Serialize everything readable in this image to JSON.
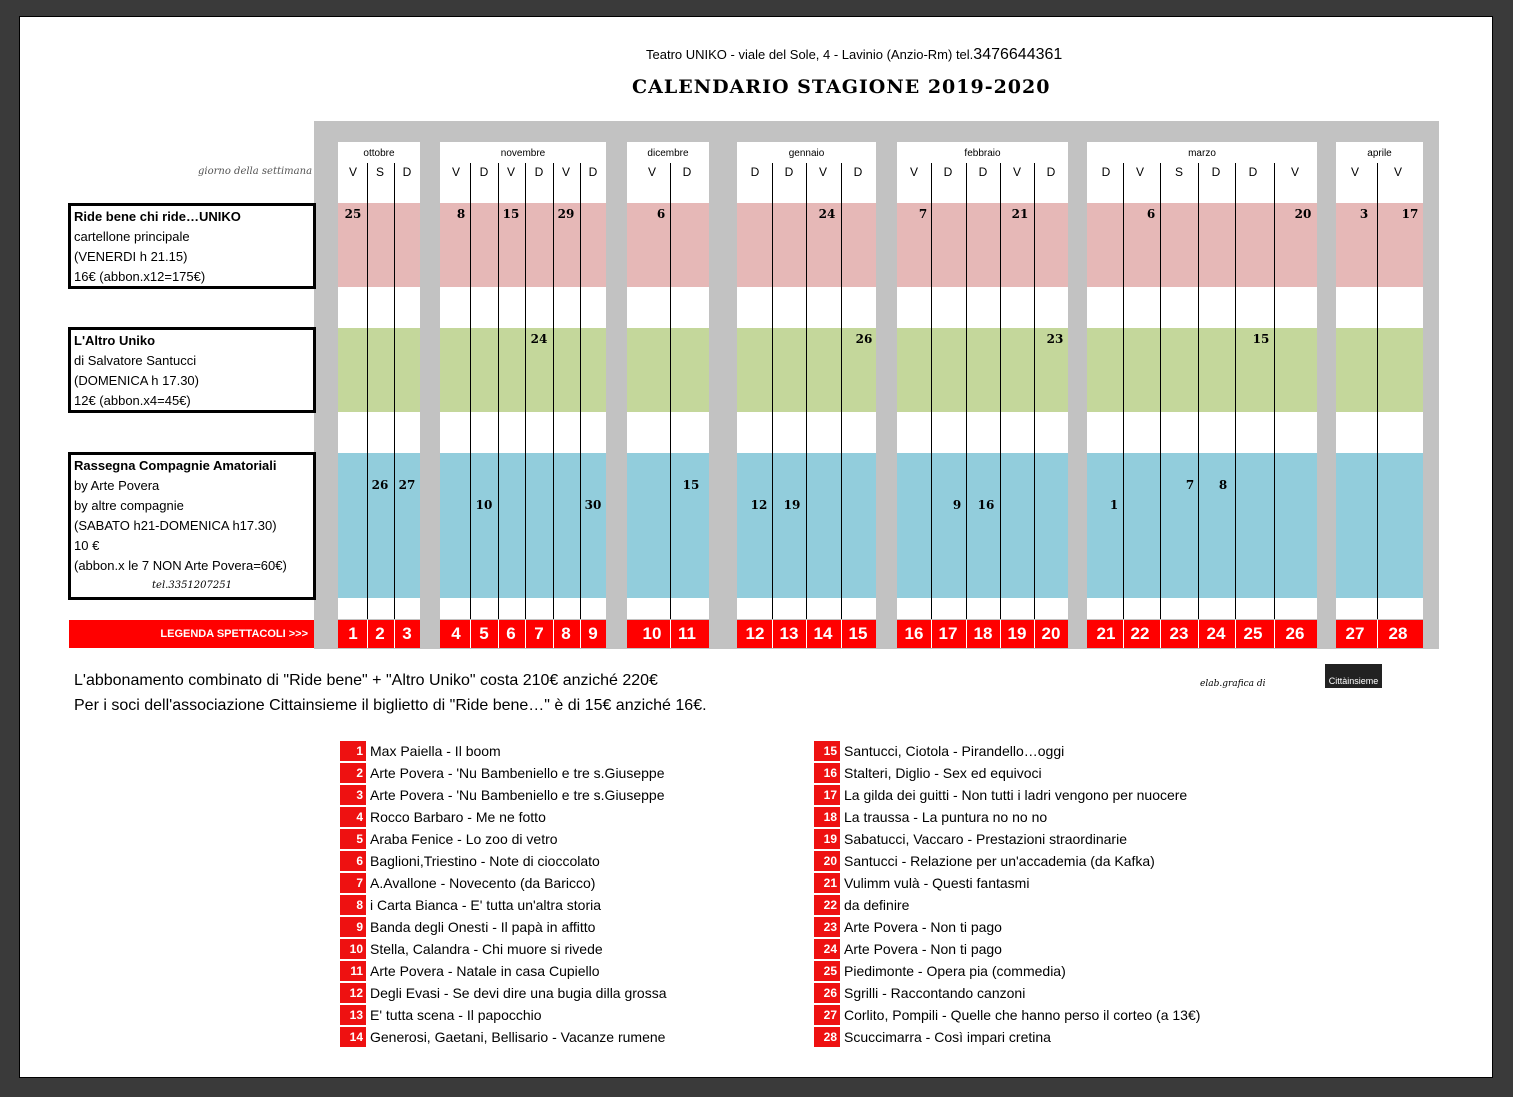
{
  "header": {
    "info": "Teatro UNIKO  -  viale del Sole, 4  - Lavinio (Anzio-Rm)   tel.",
    "tel": "3476644361",
    "title": "CALENDARIO STAGIONE 2019-2020",
    "weekday_label": "giorno della settimana :"
  },
  "months": [
    {
      "name": "ottobre",
      "days": [
        "V",
        "S",
        "D"
      ]
    },
    {
      "name": "novembre",
      "days": [
        "V",
        "D",
        "V",
        "D",
        "V",
        "D"
      ]
    },
    {
      "name": "dicembre",
      "days": [
        "V",
        "D"
      ]
    },
    {
      "name": "gennaio",
      "days": [
        "D",
        "D",
        "V",
        "D"
      ]
    },
    {
      "name": "febbraio",
      "days": [
        "V",
        "D",
        "D",
        "V",
        "D"
      ]
    },
    {
      "name": "marzo",
      "days": [
        "D",
        "V",
        "S",
        "D",
        "D",
        "V"
      ]
    },
    {
      "name": "aprile",
      "days": [
        "V",
        "V"
      ]
    }
  ],
  "categories": [
    {
      "title": "Ride bene chi ride…UNIKO",
      "lines": [
        "cartellone principale",
        "(VENERDI h 21.15)",
        "16€   (abbon.x12=175€)"
      ],
      "color": "#e6b8b7"
    },
    {
      "title": "L'Altro Uniko",
      "lines": [
        "di Salvatore Santucci",
        "(DOMENICA h 17.30)",
        "12€   (abbon.x4=45€)"
      ],
      "color": "#c4d79b"
    },
    {
      "title": "Rassegna Compagnie Amatoriali",
      "lines": [
        "by Arte Povera",
        "by altre compagnie",
        "(SABATO h21-DOMENICA h17.30)",
        "10 €",
        "(abbon.x le 7 NON Arte Povera=60€)"
      ],
      "tel": "tel.3351207251",
      "color": "#92cddc"
    }
  ],
  "dates": {
    "ride": [
      "25",
      "8",
      "15",
      "29",
      "6",
      "24",
      "7",
      "21",
      "6",
      "20",
      "3",
      "17"
    ],
    "altro": [
      "24",
      "26",
      "23",
      "15"
    ],
    "rassegna": [
      "26",
      "27",
      "10",
      "30",
      "15",
      "12",
      "19",
      "9",
      "16",
      "1",
      "7",
      "8"
    ]
  },
  "legend": {
    "label": "LEGENDA SPETTACOLI  >>>",
    "numbers": [
      "1",
      "2",
      "3",
      "4",
      "5",
      "6",
      "7",
      "8",
      "9",
      "10",
      "11",
      "12",
      "13",
      "14",
      "15",
      "16",
      "17",
      "18",
      "19",
      "20",
      "21",
      "22",
      "23",
      "24",
      "25",
      "26",
      "27",
      "28"
    ]
  },
  "notes": [
    "L'abbonamento combinato di \"Ride bene\" + \"Altro Uniko\" costa 210€ anziché 220€",
    "Per i soci dell'associazione Cittainsieme il biglietto di \"Ride bene…\"  è di 15€ anziché 16€."
  ],
  "credit": "elab.grafica di",
  "logo_text": "Cittàinsieme",
  "shows": [
    {
      "n": "1",
      "t": "Max Paiella - Il boom"
    },
    {
      "n": "2",
      "t": "Arte Povera - 'Nu Bambeniello e tre s.Giuseppe"
    },
    {
      "n": "3",
      "t": "Arte Povera - 'Nu Bambeniello e tre s.Giuseppe"
    },
    {
      "n": "4",
      "t": "Rocco Barbaro - Me ne fotto"
    },
    {
      "n": "5",
      "t": "Araba Fenice - Lo zoo di vetro"
    },
    {
      "n": "6",
      "t": "Baglioni,Triestino - Note di cioccolato"
    },
    {
      "n": "7",
      "t": "A.Avallone - Novecento (da Baricco)"
    },
    {
      "n": "8",
      "t": "i Carta Bianca - E' tutta un'altra storia"
    },
    {
      "n": "9",
      "t": "Banda degli Onesti - Il papà in affitto"
    },
    {
      "n": "10",
      "t": "Stella, Calandra - Chi muore si rivede"
    },
    {
      "n": "11",
      "t": "Arte Povera - Natale in casa Cupiello"
    },
    {
      "n": "12",
      "t": "Degli Evasi - Se devi dire una bugia dilla grossa"
    },
    {
      "n": "13",
      "t": "E' tutta scena - Il papocchio"
    },
    {
      "n": "14",
      "t": "Generosi, Gaetani, Bellisario - Vacanze rumene"
    },
    {
      "n": "15",
      "t": "Santucci, Ciotola - Pirandello…oggi"
    },
    {
      "n": "16",
      "t": "Stalteri, Diglio - Sex ed equivoci"
    },
    {
      "n": "17",
      "t": "La gilda dei guitti - Non tutti i ladri vengono per nuocere"
    },
    {
      "n": "18",
      "t": "La traussa - La puntura no no no"
    },
    {
      "n": "19",
      "t": "Sabatucci, Vaccaro - Prestazioni straordinarie"
    },
    {
      "n": "20",
      "t": "Santucci - Relazione per un'accademia (da Kafka)"
    },
    {
      "n": "21",
      "t": "Vulimm vulà - Questi fantasmi"
    },
    {
      "n": "22",
      "t": "da definire"
    },
    {
      "n": "23",
      "t": "Arte Povera - Non ti pago"
    },
    {
      "n": "24",
      "t": "Arte Povera - Non ti pago"
    },
    {
      "n": "25",
      "t": "Piedimonte - Opera pia (commedia)"
    },
    {
      "n": "26",
      "t": "Sgrilli - Raccontando canzoni"
    },
    {
      "n": "27",
      "t": "Corlito, Pompili - Quelle che hanno perso il corteo (a 13€)"
    },
    {
      "n": "28",
      "t": "Scuccimarra - Così impari cretina"
    }
  ]
}
